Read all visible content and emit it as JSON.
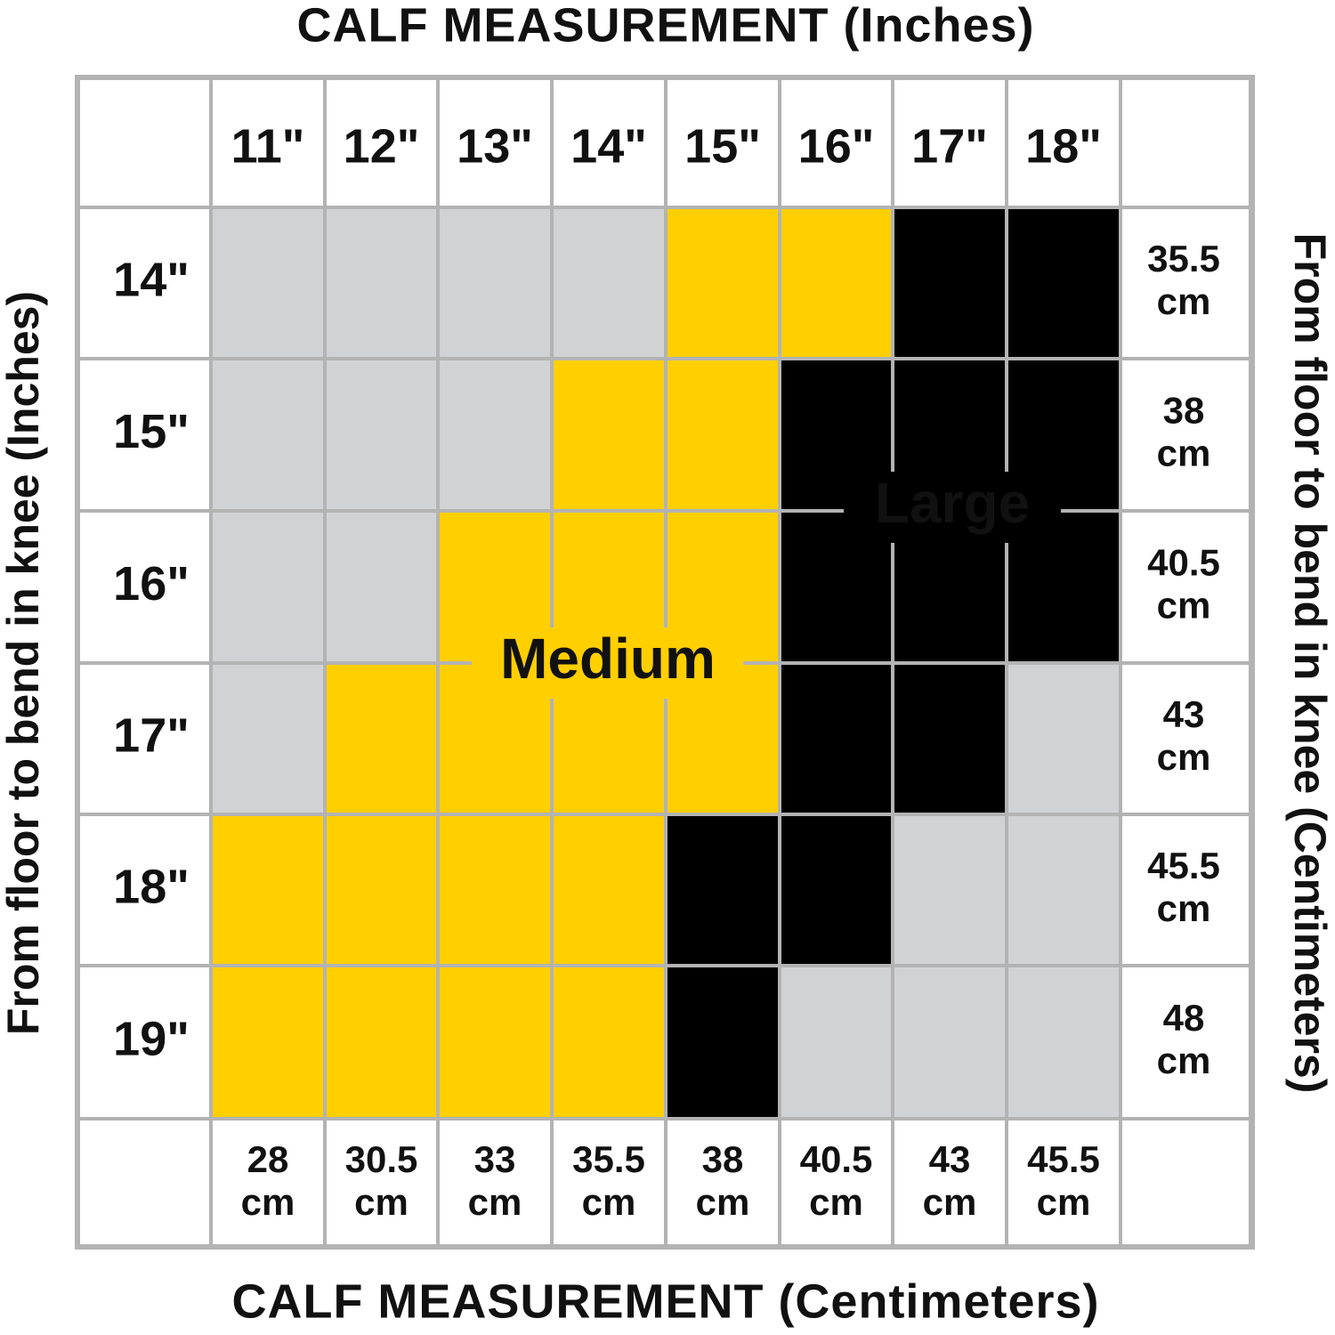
{
  "title_top": "CALF MEASUREMENT (Inches)",
  "title_bottom": "CALF MEASUREMENT (Centimeters)",
  "title_left": "From floor to bend in knee (Inches)",
  "title_right": "From floor to bend in knee (Centimeters)",
  "columns_in": [
    "11\"",
    "12\"",
    "13\"",
    "14\"",
    "15\"",
    "16\"",
    "17\"",
    "18\""
  ],
  "columns_cm": [
    {
      "value": "28",
      "unit": "cm"
    },
    {
      "value": "30.5",
      "unit": "cm"
    },
    {
      "value": "33",
      "unit": "cm"
    },
    {
      "value": "35.5",
      "unit": "cm"
    },
    {
      "value": "38",
      "unit": "cm"
    },
    {
      "value": "40.5",
      "unit": "cm"
    },
    {
      "value": "43",
      "unit": "cm"
    },
    {
      "value": "45.5",
      "unit": "cm"
    }
  ],
  "rows_in": [
    "14\"",
    "15\"",
    "16\"",
    "17\"",
    "18\"",
    "19\""
  ],
  "rows_cm": [
    {
      "value": "35.5",
      "unit": "cm"
    },
    {
      "value": "38",
      "unit": "cm"
    },
    {
      "value": "40.5",
      "unit": "cm"
    },
    {
      "value": "43",
      "unit": "cm"
    },
    {
      "value": "45.5",
      "unit": "cm"
    },
    {
      "value": "48",
      "unit": "cm"
    }
  ],
  "cells": [
    [
      "#d1d2d4",
      "#d1d2d4",
      "#d1d2d4",
      "#d1d2d4",
      "#ffcf00",
      "#ffcf00",
      "#000000",
      "#000000"
    ],
    [
      "#d1d2d4",
      "#d1d2d4",
      "#d1d2d4",
      "#ffcf00",
      "#ffcf00",
      "#000000",
      "#000000",
      "#000000"
    ],
    [
      "#d1d2d4",
      "#d1d2d4",
      "#ffcf00",
      "#ffcf00",
      "#ffcf00",
      "#000000",
      "#000000",
      "#000000"
    ],
    [
      "#d1d2d4",
      "#ffcf00",
      "#ffcf00",
      "#ffcf00",
      "#ffcf00",
      "#000000",
      "#000000",
      "#d1d2d4"
    ],
    [
      "#ffcf00",
      "#ffcf00",
      "#ffcf00",
      "#ffcf00",
      "#000000",
      "#000000",
      "#d1d2d4",
      "#d1d2d4"
    ],
    [
      "#ffcf00",
      "#ffcf00",
      "#ffcf00",
      "#ffcf00",
      "#000000",
      "#d1d2d4",
      "#d1d2d4",
      "#d1d2d4"
    ]
  ],
  "label_medium": "Medium",
  "label_large": "Large"
}
